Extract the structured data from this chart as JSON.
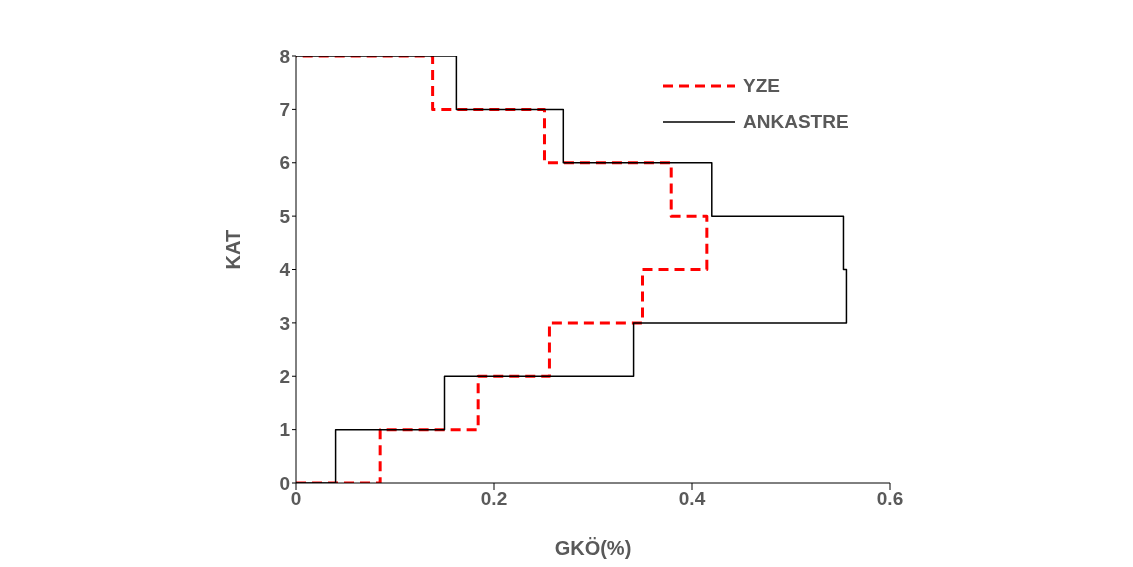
{
  "chart_data": {
    "type": "line",
    "xlabel": "GKÖ(%)",
    "ylabel": "KAT",
    "xlim": [
      0,
      0.6
    ],
    "xticks": [
      0,
      0.2,
      0.4,
      0.6
    ],
    "ylim": [
      0,
      8
    ],
    "yticks": [
      0,
      1,
      2,
      3,
      4,
      5,
      6,
      7,
      8
    ],
    "grid": false,
    "legend": "top right",
    "marker": "none",
    "series": [
      {
        "name": "YZE",
        "color": "#ff0000",
        "line_style": "dashed",
        "x": [
          0,
          0.085,
          0.085,
          0.184,
          0.184,
          0.256,
          0.256,
          0.35,
          0.35,
          0.415,
          0.415,
          0.379,
          0.379,
          0.251,
          0.251,
          0.138,
          0.138,
          0
        ],
        "values": [
          0,
          0,
          1,
          1,
          2,
          2,
          3,
          3,
          4,
          4,
          5,
          5,
          6,
          6,
          7,
          7,
          8,
          8
        ]
      },
      {
        "name": "ANKASTRE",
        "color": "#000000",
        "line_style": "solid",
        "x": [
          0,
          0.04,
          0.04,
          0.15,
          0.15,
          0.341,
          0.341,
          0.556,
          0.556,
          0.553,
          0.553,
          0.42,
          0.42,
          0.27,
          0.27,
          0.162,
          0.162,
          0
        ],
        "values": [
          0,
          0,
          1,
          1,
          2,
          2,
          3,
          3,
          4,
          4,
          5,
          5,
          6,
          6,
          7,
          7,
          8,
          8
        ]
      }
    ]
  }
}
